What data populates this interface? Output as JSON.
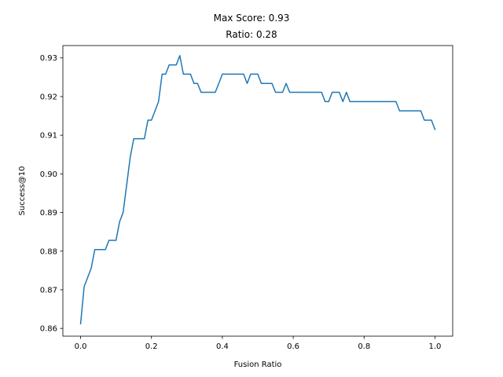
{
  "chart_data": {
    "type": "line",
    "title": "Max Score: 0.93",
    "subtitle": "Ratio: 0.28",
    "xlabel": "Fusion Ratio",
    "ylabel": "Success@10",
    "xlim": [
      -0.05,
      1.05
    ],
    "ylim": [
      0.858,
      0.9332
    ],
    "xticks": [
      0.0,
      0.2,
      0.4,
      0.6,
      0.8,
      1.0
    ],
    "xtick_labels": [
      "0.0",
      "0.2",
      "0.4",
      "0.6",
      "0.8",
      "1.0"
    ],
    "yticks": [
      0.86,
      0.87,
      0.88,
      0.89,
      0.9,
      0.91,
      0.92,
      0.93
    ],
    "ytick_labels": [
      "0.86",
      "0.87",
      "0.88",
      "0.89",
      "0.90",
      "0.91",
      "0.92",
      "0.93"
    ],
    "grid": false,
    "line_color": "#1f77b4",
    "series": [
      {
        "x": [
          0.0,
          0.01,
          0.02,
          0.03,
          0.04,
          0.05,
          0.06,
          0.07,
          0.08,
          0.09,
          0.1,
          0.11,
          0.12,
          0.13,
          0.14,
          0.15,
          0.16,
          0.17,
          0.18,
          0.19,
          0.2,
          0.21,
          0.22,
          0.23,
          0.24,
          0.25,
          0.26,
          0.27,
          0.28,
          0.29,
          0.3,
          0.31,
          0.32,
          0.33,
          0.34,
          0.35,
          0.36,
          0.37,
          0.38,
          0.39,
          0.4,
          0.41,
          0.42,
          0.43,
          0.44,
          0.45,
          0.46,
          0.47,
          0.48,
          0.49,
          0.5,
          0.51,
          0.52,
          0.53,
          0.54,
          0.55,
          0.56,
          0.57,
          0.58,
          0.59,
          0.6,
          0.61,
          0.62,
          0.63,
          0.64,
          0.65,
          0.66,
          0.67,
          0.68,
          0.69,
          0.7,
          0.71,
          0.72,
          0.73,
          0.74,
          0.75,
          0.76,
          0.77,
          0.78,
          0.79,
          0.8,
          0.81,
          0.82,
          0.83,
          0.84,
          0.85,
          0.86,
          0.87,
          0.88,
          0.89,
          0.9,
          0.91,
          0.92,
          0.93,
          0.94,
          0.95,
          0.96,
          0.97,
          0.98,
          0.99,
          1.0
        ],
        "values": [
          0.8612,
          0.8708,
          0.8732,
          0.8756,
          0.8804,
          0.8804,
          0.8804,
          0.8804,
          0.8828,
          0.8828,
          0.8828,
          0.8876,
          0.89,
          0.8971,
          0.9043,
          0.9091,
          0.9091,
          0.9091,
          0.9091,
          0.9139,
          0.9139,
          0.9163,
          0.9187,
          0.9258,
          0.9258,
          0.9282,
          0.9282,
          0.9282,
          0.9306,
          0.9258,
          0.9258,
          0.9258,
          0.9234,
          0.9234,
          0.9211,
          0.9211,
          0.9211,
          0.9211,
          0.9211,
          0.9234,
          0.9258,
          0.9258,
          0.9258,
          0.9258,
          0.9258,
          0.9258,
          0.9258,
          0.9234,
          0.9258,
          0.9258,
          0.9258,
          0.9234,
          0.9234,
          0.9234,
          0.9234,
          0.9211,
          0.9211,
          0.9211,
          0.9234,
          0.9211,
          0.9211,
          0.9211,
          0.9211,
          0.9211,
          0.9211,
          0.9211,
          0.9211,
          0.9211,
          0.9211,
          0.9187,
          0.9187,
          0.9211,
          0.9211,
          0.9211,
          0.9187,
          0.9211,
          0.9187,
          0.9187,
          0.9187,
          0.9187,
          0.9187,
          0.9187,
          0.9187,
          0.9187,
          0.9187,
          0.9187,
          0.9187,
          0.9187,
          0.9187,
          0.9187,
          0.9163,
          0.9163,
          0.9163,
          0.9163,
          0.9163,
          0.9163,
          0.9163,
          0.9139,
          0.9139,
          0.9139,
          0.9115
        ]
      }
    ]
  }
}
